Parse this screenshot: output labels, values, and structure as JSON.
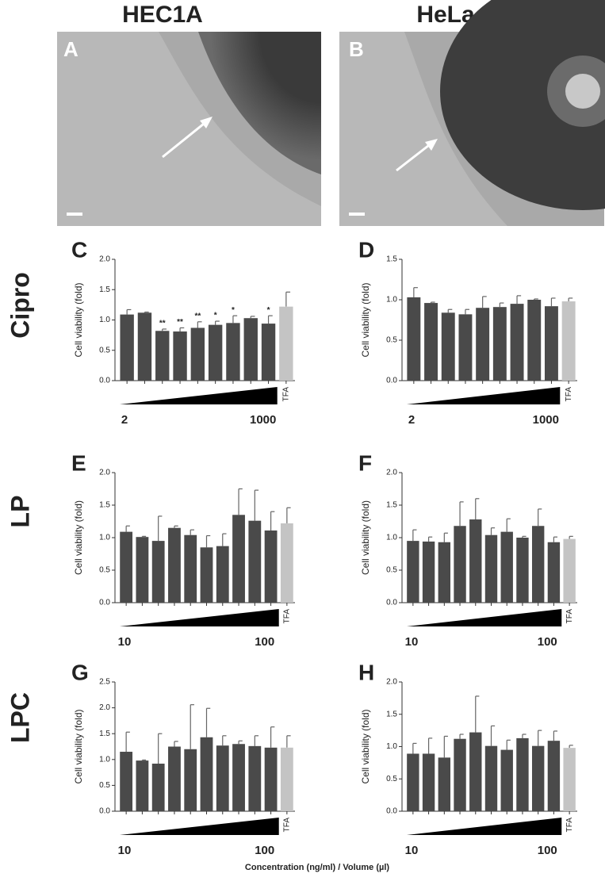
{
  "headers": [
    "HEC1A",
    "HeLa"
  ],
  "rows": [
    "Cipro",
    "LP",
    "LPC"
  ],
  "panels": [
    {
      "label": "A"
    },
    {
      "label": "B"
    }
  ],
  "x_label": "Concentration (ng/ml) / Volume (µl)",
  "chart_data": [
    {
      "type": "bar",
      "panel": "C",
      "y_label": "Cell viability (fold)",
      "categories": [
        null,
        null,
        null,
        null,
        null,
        null,
        null,
        null,
        null,
        "TFA"
      ],
      "series": [
        {
          "values": [
            1.09,
            1.12,
            0.82,
            0.81,
            0.87,
            0.92,
            0.95,
            1.03,
            0.94,
            1.22
          ],
          "errors": [
            0.08,
            0.01,
            0.03,
            0.06,
            0.1,
            0.06,
            0.12,
            0.03,
            0.13,
            0.24
          ],
          "colors": [
            "#4a4a4a",
            "#4a4a4a",
            "#4a4a4a",
            "#4a4a4a",
            "#4a4a4a",
            "#4a4a4a",
            "#4a4a4a",
            "#4a4a4a",
            "#4a4a4a",
            "#c4c4c4"
          ]
        }
      ],
      "significance": [
        null,
        null,
        "**",
        "**",
        "**",
        "*",
        "*",
        null,
        "*",
        null
      ],
      "ylim": [
        0,
        2
      ],
      "yticks": [
        {
          "value": 0,
          "label": "0.0"
        },
        0.5,
        {
          "value": 1,
          "label": "1.0"
        },
        1.5,
        {
          "value": 2,
          "label": "2.0"
        }
      ],
      "range_start": "2",
      "range_end": "1000"
    },
    {
      "type": "bar",
      "panel": "D",
      "y_label": "Cell viability (fold)",
      "categories": [
        null,
        null,
        null,
        null,
        null,
        null,
        null,
        null,
        null,
        "TFA"
      ],
      "series": [
        {
          "values": [
            1.03,
            0.96,
            0.84,
            0.82,
            0.9,
            0.91,
            0.95,
            1.0,
            0.92,
            0.98
          ],
          "errors": [
            0.12,
            0.01,
            0.04,
            0.06,
            0.14,
            0.05,
            0.1,
            0.01,
            0.1,
            0.04
          ],
          "colors": [
            "#4a4a4a",
            "#4a4a4a",
            "#4a4a4a",
            "#4a4a4a",
            "#4a4a4a",
            "#4a4a4a",
            "#4a4a4a",
            "#4a4a4a",
            "#4a4a4a",
            "#c4c4c4"
          ]
        }
      ],
      "ylim": [
        0,
        1.5
      ],
      "yticks": [
        {
          "value": 0,
          "label": "0.0"
        },
        0.5,
        {
          "value": 1,
          "label": "1.0"
        },
        1.5
      ],
      "range_start": "2",
      "range_end": "1000"
    },
    {
      "type": "bar",
      "panel": "E",
      "y_label": "Cell viability (fold)",
      "categories": [
        null,
        null,
        null,
        null,
        null,
        null,
        null,
        null,
        null,
        null,
        "TFA"
      ],
      "series": [
        {
          "values": [
            1.09,
            1.01,
            0.95,
            1.15,
            1.04,
            0.85,
            0.87,
            1.35,
            1.26,
            1.11,
            1.22
          ],
          "errors": [
            0.09,
            0.01,
            0.38,
            0.03,
            0.08,
            0.18,
            0.19,
            0.4,
            0.47,
            0.29,
            0.24
          ],
          "colors": [
            "#4a4a4a",
            "#4a4a4a",
            "#4a4a4a",
            "#4a4a4a",
            "#4a4a4a",
            "#4a4a4a",
            "#4a4a4a",
            "#4a4a4a",
            "#4a4a4a",
            "#4a4a4a",
            "#c4c4c4"
          ]
        }
      ],
      "ylim": [
        0,
        2
      ],
      "yticks": [
        {
          "value": 0,
          "label": "0.0"
        },
        0.5,
        {
          "value": 1,
          "label": "1.0"
        },
        1.5,
        {
          "value": 2,
          "label": "2.0"
        }
      ],
      "range_start": "10",
      "range_end": "100"
    },
    {
      "type": "bar",
      "panel": "F",
      "y_label": "Cell viability (fold)",
      "categories": [
        null,
        null,
        null,
        null,
        null,
        null,
        null,
        null,
        null,
        null,
        "TFA"
      ],
      "series": [
        {
          "values": [
            0.95,
            0.94,
            0.93,
            1.18,
            1.28,
            1.04,
            1.09,
            1.0,
            1.18,
            0.93,
            0.98
          ],
          "errors": [
            0.17,
            0.07,
            0.14,
            0.37,
            0.32,
            0.11,
            0.2,
            0.02,
            0.26,
            0.08,
            0.04
          ],
          "colors": [
            "#4a4a4a",
            "#4a4a4a",
            "#4a4a4a",
            "#4a4a4a",
            "#4a4a4a",
            "#4a4a4a",
            "#4a4a4a",
            "#4a4a4a",
            "#4a4a4a",
            "#4a4a4a",
            "#c4c4c4"
          ]
        }
      ],
      "ylim": [
        0,
        2
      ],
      "yticks": [
        {
          "value": 0,
          "label": "0.0"
        },
        0.5,
        {
          "value": 1,
          "label": "1.0"
        },
        1.5,
        {
          "value": 2,
          "label": "2.0"
        }
      ],
      "range_start": "10",
      "range_end": "100"
    },
    {
      "type": "bar",
      "panel": "G",
      "y_label": "Cell viability (fold)",
      "categories": [
        null,
        null,
        null,
        null,
        null,
        null,
        null,
        null,
        null,
        null,
        "TFA"
      ],
      "series": [
        {
          "values": [
            1.15,
            0.98,
            0.92,
            1.25,
            1.2,
            1.43,
            1.27,
            1.3,
            1.26,
            1.23,
            1.23
          ],
          "errors": [
            0.38,
            0.01,
            0.58,
            0.1,
            0.86,
            0.56,
            0.19,
            0.06,
            0.2,
            0.4,
            0.23
          ],
          "colors": [
            "#4a4a4a",
            "#4a4a4a",
            "#4a4a4a",
            "#4a4a4a",
            "#4a4a4a",
            "#4a4a4a",
            "#4a4a4a",
            "#4a4a4a",
            "#4a4a4a",
            "#4a4a4a",
            "#c4c4c4"
          ]
        }
      ],
      "ylim": [
        0,
        2.5
      ],
      "yticks": [
        {
          "value": 0,
          "label": "0.0"
        },
        0.5,
        {
          "value": 1,
          "label": "1.0"
        },
        1.5,
        {
          "value": 2,
          "label": "2.0"
        },
        2.5
      ],
      "range_start": "10",
      "range_end": "100"
    },
    {
      "type": "bar",
      "panel": "H",
      "y_label": "Cell viability (fold)",
      "categories": [
        null,
        null,
        null,
        null,
        null,
        null,
        null,
        null,
        null,
        null,
        "TFA"
      ],
      "series": [
        {
          "values": [
            0.89,
            0.89,
            0.83,
            1.12,
            1.22,
            1.01,
            0.95,
            1.13,
            1.01,
            1.09,
            0.98
          ],
          "errors": [
            0.16,
            0.24,
            0.33,
            0.07,
            0.56,
            0.31,
            0.15,
            0.06,
            0.24,
            0.15,
            0.04
          ],
          "colors": [
            "#4a4a4a",
            "#4a4a4a",
            "#4a4a4a",
            "#4a4a4a",
            "#4a4a4a",
            "#4a4a4a",
            "#4a4a4a",
            "#4a4a4a",
            "#4a4a4a",
            "#4a4a4a",
            "#c4c4c4"
          ]
        }
      ],
      "ylim": [
        0,
        2
      ],
      "yticks": [
        {
          "value": 0,
          "label": "0.0"
        },
        0.5,
        {
          "value": 1,
          "label": "1.0"
        },
        1.5,
        {
          "value": 2,
          "label": "2.0"
        }
      ],
      "range_start": "10",
      "range_end": "100"
    }
  ]
}
